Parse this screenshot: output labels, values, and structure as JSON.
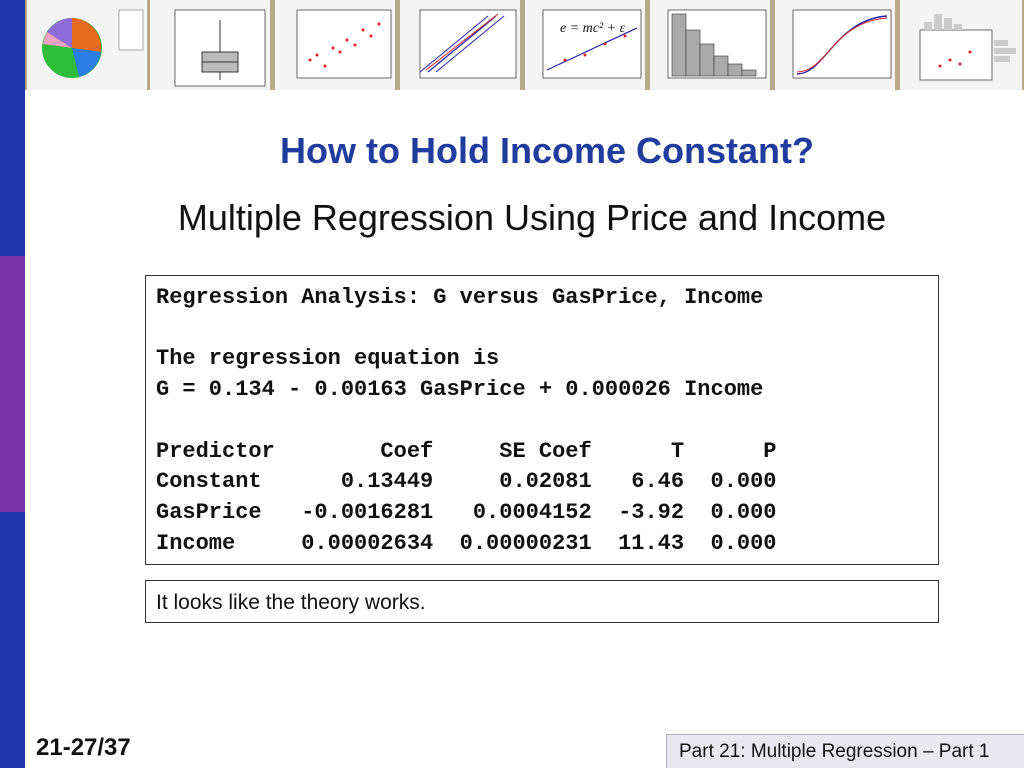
{
  "slide": {
    "title": "How to Hold Income Constant?",
    "subtitle": "Multiple Regression Using Price and Income",
    "output_lines": [
      "Regression Analysis: G versus GasPrice, Income",
      "The regression equation is",
      "G = 0.134 - 0.00163 GasPrice + 0.000026 Income",
      "Predictor        Coef     SE Coef      T      P",
      "Constant      0.13449     0.02081   6.46  0.000",
      "GasPrice   -0.0016281   0.0004152  -3.92  0.000",
      "Income     0.00002634  0.00000231  11.43  0.000"
    ],
    "note": "It looks like the theory works.",
    "slide_number": "21-27/37",
    "footer": "Part 21: Multiple Regression – Part 1"
  },
  "colors": {
    "title": "#1f3c9e",
    "sidebar_top": "#1e36a8",
    "sidebar_mid": "#7a33a8",
    "sidebar_bottom": "#1e36a8"
  },
  "banner_equation": "e = mc² + ε"
}
